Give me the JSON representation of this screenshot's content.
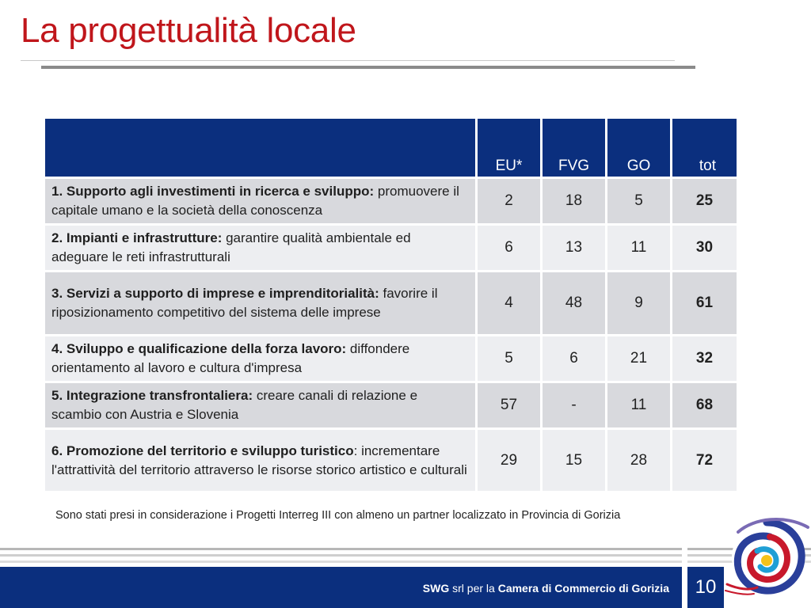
{
  "slide": {
    "title": "La progettualità locale",
    "page_number": "10"
  },
  "table": {
    "columns": [
      "",
      "EU*",
      "FVG",
      "GO",
      "tot"
    ],
    "rows": [
      {
        "label_bold": "1. Supporto agli investimenti in ricerca e sviluppo:",
        "label_rest": " promuovere il capitale umano e la società della conoscenza",
        "eu": "2",
        "fvg": "18",
        "go": "5",
        "tot": "25"
      },
      {
        "label_bold": "2. Impianti e infrastrutture:",
        "label_rest": " garantire qualità  ambientale ed adeguare le reti infrastrutturali",
        "eu": "6",
        "fvg": "13",
        "go": "11",
        "tot": "30"
      },
      {
        "label_bold": "3. Servizi a supporto di imprese e imprenditorialità:",
        "label_rest": " favorire il riposizionamento competitivo del sistema delle imprese",
        "eu": "4",
        "fvg": "48",
        "go": "9",
        "tot": "61"
      },
      {
        "label_bold": "4. Sviluppo e qualificazione della forza lavoro:",
        "label_rest": " diffondere orientamento al lavoro e cultura d'impresa",
        "eu": "5",
        "fvg": "6",
        "go": "21",
        "tot": "32"
      },
      {
        "label_bold": "5. Integrazione transfrontaliera:",
        "label_rest": " creare canali di relazione e scambio con Austria e Slovenia",
        "eu": "57",
        "fvg": "-",
        "go": "11",
        "tot": "68"
      },
      {
        "label_bold": "6. Promozione del territorio e sviluppo turistico",
        "label_rest": ": incrementare l'attrattività del territorio attraverso le risorse storico artistico e culturali",
        "eu": "29",
        "fvg": "15",
        "go": "28",
        "tot": "72"
      }
    ]
  },
  "note": "Sono stati presi in considerazione i Progetti Interreg III con almeno un partner localizzato in Provincia di Gorizia",
  "footer": {
    "brand": "SWG",
    "middle": " srl per la ",
    "client": "Camera di Commercio di Gorizia"
  },
  "colors": {
    "title": "#c0161b",
    "header_blue": "#0b2f7e",
    "row_dark": "#d8d9dd",
    "row_light": "#edeef1"
  },
  "icons": [
    "swirl-logo-icon"
  ]
}
